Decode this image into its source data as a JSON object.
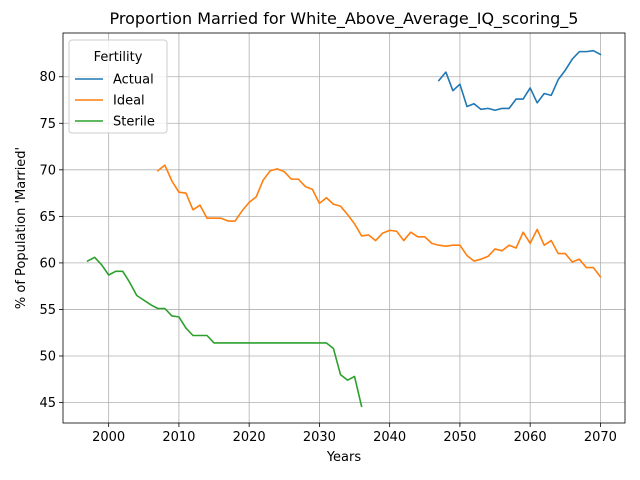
{
  "chart_data": {
    "type": "line",
    "title": "Proportion Married for White_Above_Average_IQ_scoring_5",
    "xlabel": "Years",
    "ylabel": "% of Population 'Married'",
    "xlim": [
      1993.5,
      2073.5
    ],
    "ylim": [
      42.8,
      84.7
    ],
    "xticks": [
      2000,
      2010,
      2020,
      2030,
      2040,
      2050,
      2060,
      2070
    ],
    "yticks": [
      45,
      50,
      55,
      60,
      65,
      70,
      75,
      80
    ],
    "grid": true,
    "legend": {
      "title": "Fertility",
      "placement": "top-left"
    },
    "series": [
      {
        "name": "Actual",
        "color": "#1f77b4",
        "x": [
          2047,
          2048,
          2049,
          2050,
          2051,
          2052,
          2053,
          2054,
          2055,
          2056,
          2057,
          2058,
          2059,
          2060,
          2061,
          2062,
          2063,
          2064,
          2065,
          2066,
          2067,
          2068,
          2069,
          2070
        ],
        "y": [
          79.6,
          80.5,
          78.5,
          79.2,
          76.8,
          77.1,
          76.5,
          76.6,
          76.4,
          76.6,
          76.6,
          77.6,
          77.6,
          78.8,
          77.2,
          78.2,
          78.0,
          79.7,
          80.7,
          81.9,
          82.7,
          82.7,
          82.8,
          82.4
        ]
      },
      {
        "name": "Ideal",
        "color": "#ff7f0e",
        "x": [
          2007,
          2008,
          2009,
          2010,
          2011,
          2012,
          2013,
          2014,
          2015,
          2016,
          2017,
          2018,
          2019,
          2020,
          2021,
          2022,
          2023,
          2024,
          2025,
          2026,
          2027,
          2028,
          2029,
          2030,
          2031,
          2032,
          2033,
          2034,
          2035,
          2036,
          2037,
          2038,
          2039,
          2040,
          2041,
          2042,
          2043,
          2044,
          2045,
          2046,
          2047,
          2048,
          2049,
          2050,
          2051,
          2052,
          2053,
          2054,
          2055,
          2056,
          2057,
          2058,
          2059,
          2060,
          2061,
          2062,
          2063,
          2064,
          2065,
          2066,
          2067,
          2068,
          2069,
          2070
        ],
        "y": [
          69.9,
          70.5,
          68.8,
          67.6,
          67.5,
          65.7,
          66.2,
          64.8,
          64.8,
          64.8,
          64.5,
          64.5,
          65.6,
          66.5,
          67.1,
          68.9,
          69.9,
          70.1,
          69.8,
          69.0,
          69.0,
          68.2,
          67.9,
          66.4,
          67.0,
          66.3,
          66.1,
          65.2,
          64.2,
          62.9,
          63.0,
          62.4,
          63.2,
          63.5,
          63.4,
          62.4,
          63.3,
          62.8,
          62.8,
          62.1,
          61.9,
          61.8,
          61.9,
          61.9,
          60.8,
          60.2,
          60.4,
          60.7,
          61.5,
          61.3,
          61.9,
          61.6,
          63.3,
          62.1,
          63.6,
          61.9,
          62.4,
          61.0,
          61.0,
          60.1,
          60.4,
          59.5,
          59.5,
          58.5
        ]
      },
      {
        "name": "Sterile",
        "color": "#2ca02c",
        "x": [
          1997,
          1998,
          1999,
          2000,
          2001,
          2002,
          2003,
          2004,
          2005,
          2006,
          2007,
          2008,
          2009,
          2010,
          2011,
          2012,
          2013,
          2014,
          2015,
          2016,
          2017,
          2018,
          2019,
          2020,
          2021,
          2022,
          2023,
          2024,
          2025,
          2026,
          2027,
          2028,
          2029,
          2030,
          2031,
          2032,
          2033,
          2034,
          2035,
          2036
        ],
        "y": [
          60.2,
          60.6,
          59.8,
          58.7,
          59.1,
          59.1,
          57.9,
          56.5,
          56.0,
          55.5,
          55.1,
          55.1,
          54.3,
          54.2,
          53.0,
          52.2,
          52.2,
          52.2,
          51.4,
          51.4,
          51.4,
          51.4,
          51.4,
          51.4,
          51.4,
          51.4,
          51.4,
          51.4,
          51.4,
          51.4,
          51.4,
          51.4,
          51.4,
          51.4,
          51.4,
          50.8,
          48.0,
          47.4,
          47.8,
          44.6
        ]
      }
    ]
  }
}
